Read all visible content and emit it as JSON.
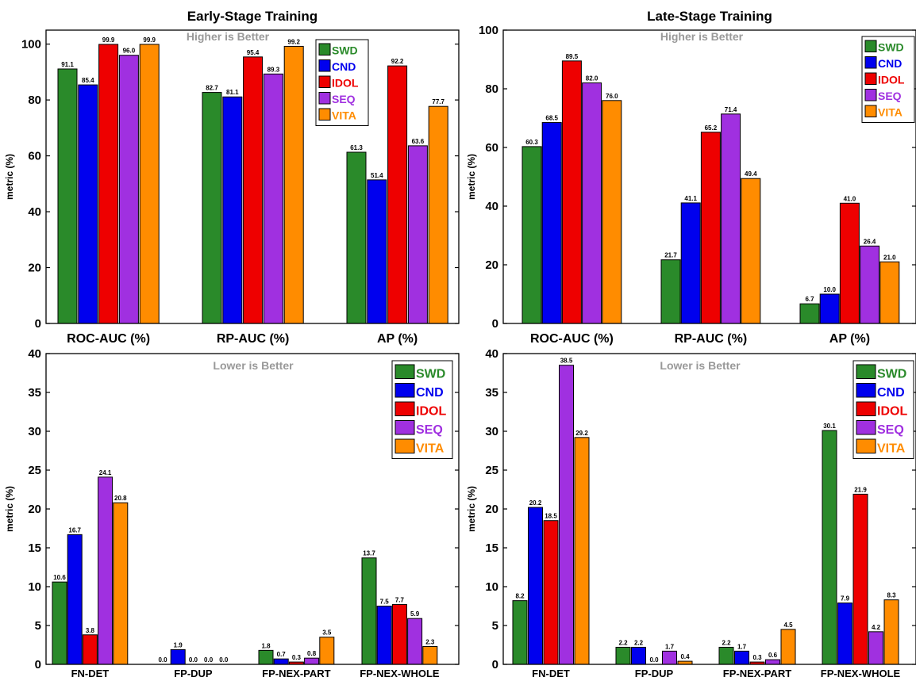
{
  "colors": {
    "SWD": "#2a8a2a",
    "CND": "#0000ee",
    "IDOL": "#ee0000",
    "SEQ": "#a030e0",
    "VITA": "#ff8c00"
  },
  "chart_data": [
    {
      "type": "bar",
      "title": "Early-Stage Training",
      "note": "Higher is Better",
      "ylabel": "metric (%)",
      "ylim": [
        0,
        105
      ],
      "yticks": [
        0,
        20,
        40,
        60,
        80,
        100
      ],
      "legend_position": "top-right",
      "categories": [
        "ROC-AUC (%)",
        "RP-AUC (%)",
        "AP (%)"
      ],
      "series": [
        {
          "name": "SWD",
          "values": [
            91.1,
            82.7,
            61.3
          ]
        },
        {
          "name": "CND",
          "values": [
            85.4,
            81.1,
            51.4
          ]
        },
        {
          "name": "IDOL",
          "values": [
            99.9,
            95.4,
            92.2
          ]
        },
        {
          "name": "SEQ",
          "values": [
            96.0,
            89.3,
            63.6
          ]
        },
        {
          "name": "VITA",
          "values": [
            99.9,
            99.2,
            77.7
          ]
        }
      ]
    },
    {
      "type": "bar",
      "title": "Late-Stage Training",
      "note": "Higher is Better",
      "ylabel": "metric (%)",
      "ylim": [
        0,
        100
      ],
      "yticks": [
        0,
        20,
        40,
        60,
        80,
        100
      ],
      "legend_position": "top-right",
      "categories": [
        "ROC-AUC (%)",
        "RP-AUC (%)",
        "AP (%)"
      ],
      "series": [
        {
          "name": "SWD",
          "values": [
            60.3,
            21.7,
            6.7
          ]
        },
        {
          "name": "CND",
          "values": [
            68.5,
            41.1,
            10.0
          ]
        },
        {
          "name": "IDOL",
          "values": [
            89.5,
            65.2,
            41.0
          ]
        },
        {
          "name": "SEQ",
          "values": [
            82.0,
            71.4,
            26.4
          ]
        },
        {
          "name": "VITA",
          "values": [
            76.0,
            49.4,
            21.0
          ]
        }
      ]
    },
    {
      "type": "bar",
      "title": "",
      "note": "Lower is Better",
      "ylabel": "metric (%)",
      "ylim": [
        0,
        40
      ],
      "yticks": [
        0,
        5,
        10,
        15,
        20,
        25,
        30,
        35,
        40
      ],
      "legend_position": "top-right",
      "categories": [
        "FN-DET",
        "FP-DUP",
        "FP-NEX-PART",
        "FP-NEX-WHOLE"
      ],
      "series": [
        {
          "name": "SWD",
          "values": [
            10.6,
            0.0,
            1.8,
            13.7
          ]
        },
        {
          "name": "CND",
          "values": [
            16.7,
            1.9,
            0.7,
            7.5
          ]
        },
        {
          "name": "IDOL",
          "values": [
            3.8,
            0.0,
            0.3,
            7.7
          ]
        },
        {
          "name": "SEQ",
          "values": [
            24.1,
            0.0,
            0.8,
            5.9
          ]
        },
        {
          "name": "VITA",
          "values": [
            20.8,
            0.0,
            3.5,
            2.3
          ]
        }
      ]
    },
    {
      "type": "bar",
      "title": "",
      "note": "Lower is Better",
      "ylabel": "metric (%)",
      "ylim": [
        0,
        40
      ],
      "yticks": [
        0,
        5,
        10,
        15,
        20,
        25,
        30,
        35,
        40
      ],
      "legend_position": "top-right",
      "categories": [
        "FN-DET",
        "FP-DUP",
        "FP-NEX-PART",
        "FP-NEX-WHOLE"
      ],
      "series": [
        {
          "name": "SWD",
          "values": [
            8.2,
            2.2,
            2.2,
            30.1
          ]
        },
        {
          "name": "CND",
          "values": [
            20.2,
            2.2,
            1.7,
            7.9
          ]
        },
        {
          "name": "IDOL",
          "values": [
            18.5,
            0.0,
            0.3,
            21.9
          ]
        },
        {
          "name": "SEQ",
          "values": [
            38.5,
            1.7,
            0.6,
            4.2
          ]
        },
        {
          "name": "VITA",
          "values": [
            29.2,
            0.4,
            4.5,
            8.3
          ]
        }
      ]
    }
  ]
}
